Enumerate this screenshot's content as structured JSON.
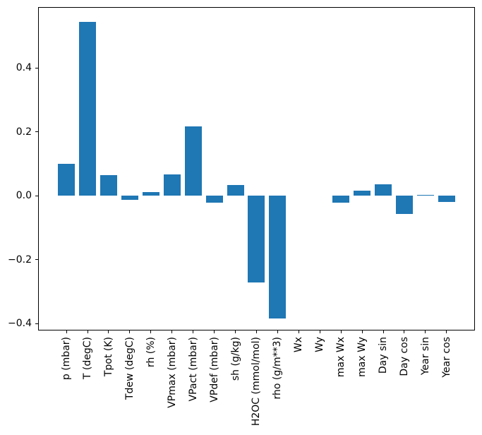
{
  "chart_data": {
    "type": "bar",
    "title": "",
    "xlabel": "",
    "ylabel": "",
    "categories": [
      "p (mbar)",
      "T (degC)",
      "Tpot (K)",
      "Tdew (degC)",
      "rh (%)",
      "VPmax (mbar)",
      "VPact (mbar)",
      "VPdef (mbar)",
      "sh (g/kg)",
      "H2OC (mmol/mol)",
      "rho (g/m**3)",
      "Wx",
      "Wy",
      "max Wx",
      "max Wy",
      "Day sin",
      "Day cos",
      "Year sin",
      "Year cos"
    ],
    "values": [
      0.1,
      0.545,
      0.064,
      -0.013,
      0.012,
      0.066,
      0.218,
      -0.021,
      0.034,
      -0.272,
      -0.383,
      0.0,
      0.0,
      -0.021,
      0.016,
      0.035,
      -0.057,
      0.002,
      -0.02
    ],
    "ylim": [
      -0.4216,
      0.5907
    ],
    "yticks": [
      0.4,
      0.2,
      0.0,
      -0.2,
      -0.4
    ],
    "ytick_labels": [
      "0.4",
      "0.2",
      "0.0",
      "−0.2",
      "−0.4"
    ],
    "xtick_rotation_deg": 90,
    "grid": false,
    "legend_position": "none",
    "bar_color": "#1f77b4",
    "axis_color": "#000000",
    "background_color": "#ffffff"
  }
}
